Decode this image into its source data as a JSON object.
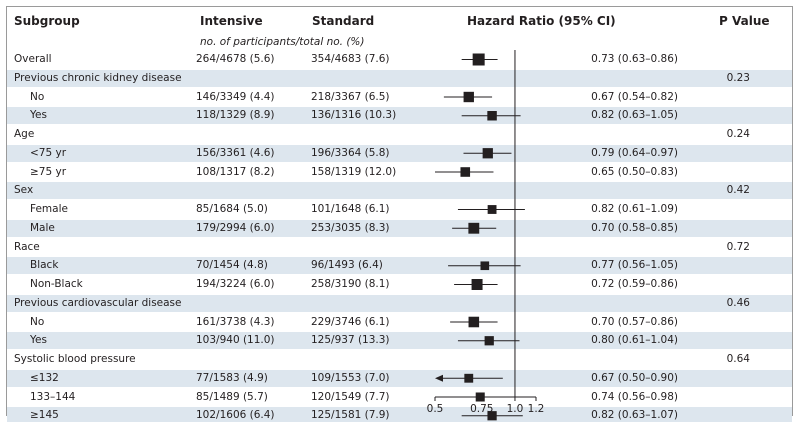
{
  "header": {
    "subgroup": "Subgroup",
    "intensive": "Intensive",
    "standard": "Standard",
    "hazard_ratio": "Hazard Ratio (95% CI)",
    "p_value": "P Value",
    "subtitle": "no. of participants/total no. (%)"
  },
  "rows": [
    {
      "label": "Overall",
      "type": "item",
      "indent": false,
      "intensive": "264/4678 (5.6)",
      "standard": "354/4683 (7.6)",
      "ci_text": "0.73 (0.63–0.86)",
      "p": ""
    },
    {
      "label": "Previous chronic kidney disease",
      "type": "group",
      "p": "0.23"
    },
    {
      "label": "No",
      "type": "item",
      "indent": true,
      "intensive": "146/3349 (4.4)",
      "standard": "218/3367 (6.5)",
      "ci_text": "0.67 (0.54–0.82)",
      "p": ""
    },
    {
      "label": "Yes",
      "type": "item",
      "indent": true,
      "intensive": "118/1329 (8.9)",
      "standard": "136/1316 (10.3)",
      "ci_text": "0.82 (0.63–1.05)",
      "p": ""
    },
    {
      "label": "Age",
      "type": "group",
      "p": "0.24"
    },
    {
      "label": "<75 yr",
      "type": "item",
      "indent": true,
      "intensive": "156/3361 (4.6)",
      "standard": "196/3364 (5.8)",
      "ci_text": "0.79 (0.64–0.97)",
      "p": ""
    },
    {
      "label": "≥75 yr",
      "type": "item",
      "indent": true,
      "intensive": "108/1317 (8.2)",
      "standard": "158/1319 (12.0)",
      "ci_text": "0.65 (0.50–0.83)",
      "p": ""
    },
    {
      "label": "Sex",
      "type": "group",
      "p": "0.42"
    },
    {
      "label": "Female",
      "type": "item",
      "indent": true,
      "intensive": "85/1684 (5.0)",
      "standard": "101/1648 (6.1)",
      "ci_text": "0.82 (0.61–1.09)",
      "p": ""
    },
    {
      "label": "Male",
      "type": "item",
      "indent": true,
      "intensive": "179/2994 (6.0)",
      "standard": "253/3035 (8.3)",
      "ci_text": "0.70 (0.58–0.85)",
      "p": ""
    },
    {
      "label": "Race",
      "type": "group",
      "p": "0.72"
    },
    {
      "label": "Black",
      "type": "item",
      "indent": true,
      "intensive": "70/1454 (4.8)",
      "standard": "96/1493 (6.4)",
      "ci_text": "0.77 (0.56–1.05)",
      "p": ""
    },
    {
      "label": "Non-Black",
      "type": "item",
      "indent": true,
      "intensive": "194/3224 (6.0)",
      "standard": "258/3190 (8.1)",
      "ci_text": "0.72 (0.59–0.86)",
      "p": ""
    },
    {
      "label": "Previous cardiovascular disease",
      "type": "group",
      "p": "0.46"
    },
    {
      "label": "No",
      "type": "item",
      "indent": true,
      "intensive": "161/3738 (4.3)",
      "standard": "229/3746 (6.1)",
      "ci_text": "0.70 (0.57–0.86)",
      "p": ""
    },
    {
      "label": "Yes",
      "type": "item",
      "indent": true,
      "intensive": "103/940 (11.0)",
      "standard": "125/937 (13.3)",
      "ci_text": "0.80 (0.61–1.04)",
      "p": ""
    },
    {
      "label": "Systolic blood pressure",
      "type": "group",
      "p": "0.64"
    },
    {
      "label": "≤132",
      "type": "item",
      "indent": true,
      "intensive": "77/1583 (4.9)",
      "standard": "109/1553 (7.0)",
      "ci_text": "0.67 (0.50–0.90)",
      "p": ""
    },
    {
      "label": "133–144",
      "type": "item",
      "indent": true,
      "intensive": "85/1489 (5.7)",
      "standard": "120/1549 (7.7)",
      "ci_text": "0.74 (0.56–0.98)",
      "p": ""
    },
    {
      "label": "≥145",
      "type": "item",
      "indent": true,
      "intensive": "102/1606 (6.4)",
      "standard": "125/1581 (7.9)",
      "ci_text": "0.82 (0.63–1.07)",
      "p": ""
    }
  ],
  "chart_data": {
    "type": "forest",
    "x_scale": "log",
    "xlim": [
      0.5,
      1.2
    ],
    "x_ticks": [
      {
        "value": 0.5,
        "label": "0.5"
      },
      {
        "value": 0.75,
        "label": "0.75"
      },
      {
        "value": 1.0,
        "label": "1.0"
      },
      {
        "value": 1.2,
        "label": "1.2"
      }
    ],
    "reference_line": 1.0,
    "points": [
      {
        "row": 0,
        "hr": 0.73,
        "lo": 0.63,
        "hi": 0.86,
        "events": 618
      },
      {
        "row": 2,
        "hr": 0.67,
        "lo": 0.54,
        "hi": 0.82,
        "events": 364
      },
      {
        "row": 3,
        "hr": 0.82,
        "lo": 0.63,
        "hi": 1.05,
        "events": 254
      },
      {
        "row": 5,
        "hr": 0.79,
        "lo": 0.64,
        "hi": 0.97,
        "events": 352
      },
      {
        "row": 6,
        "hr": 0.65,
        "lo": 0.5,
        "hi": 0.83,
        "events": 266
      },
      {
        "row": 8,
        "hr": 0.82,
        "lo": 0.61,
        "hi": 1.09,
        "events": 186
      },
      {
        "row": 9,
        "hr": 0.7,
        "lo": 0.58,
        "hi": 0.85,
        "events": 432
      },
      {
        "row": 11,
        "hr": 0.77,
        "lo": 0.56,
        "hi": 1.05,
        "events": 166
      },
      {
        "row": 12,
        "hr": 0.72,
        "lo": 0.59,
        "hi": 0.86,
        "events": 452
      },
      {
        "row": 14,
        "hr": 0.7,
        "lo": 0.57,
        "hi": 0.86,
        "events": 390
      },
      {
        "row": 15,
        "hr": 0.8,
        "lo": 0.61,
        "hi": 1.04,
        "events": 228
      },
      {
        "row": 17,
        "hr": 0.67,
        "lo": 0.5,
        "hi": 0.9,
        "events": 186,
        "arrow_left": true
      },
      {
        "row": 18,
        "hr": 0.74,
        "lo": 0.56,
        "hi": 0.98,
        "events": 205
      },
      {
        "row": 19,
        "hr": 0.82,
        "lo": 0.63,
        "hi": 1.07,
        "events": 227
      }
    ],
    "colors": {
      "shade": "#dde6ee",
      "ink": "#231f20",
      "frame": "#9a9a9a"
    }
  }
}
